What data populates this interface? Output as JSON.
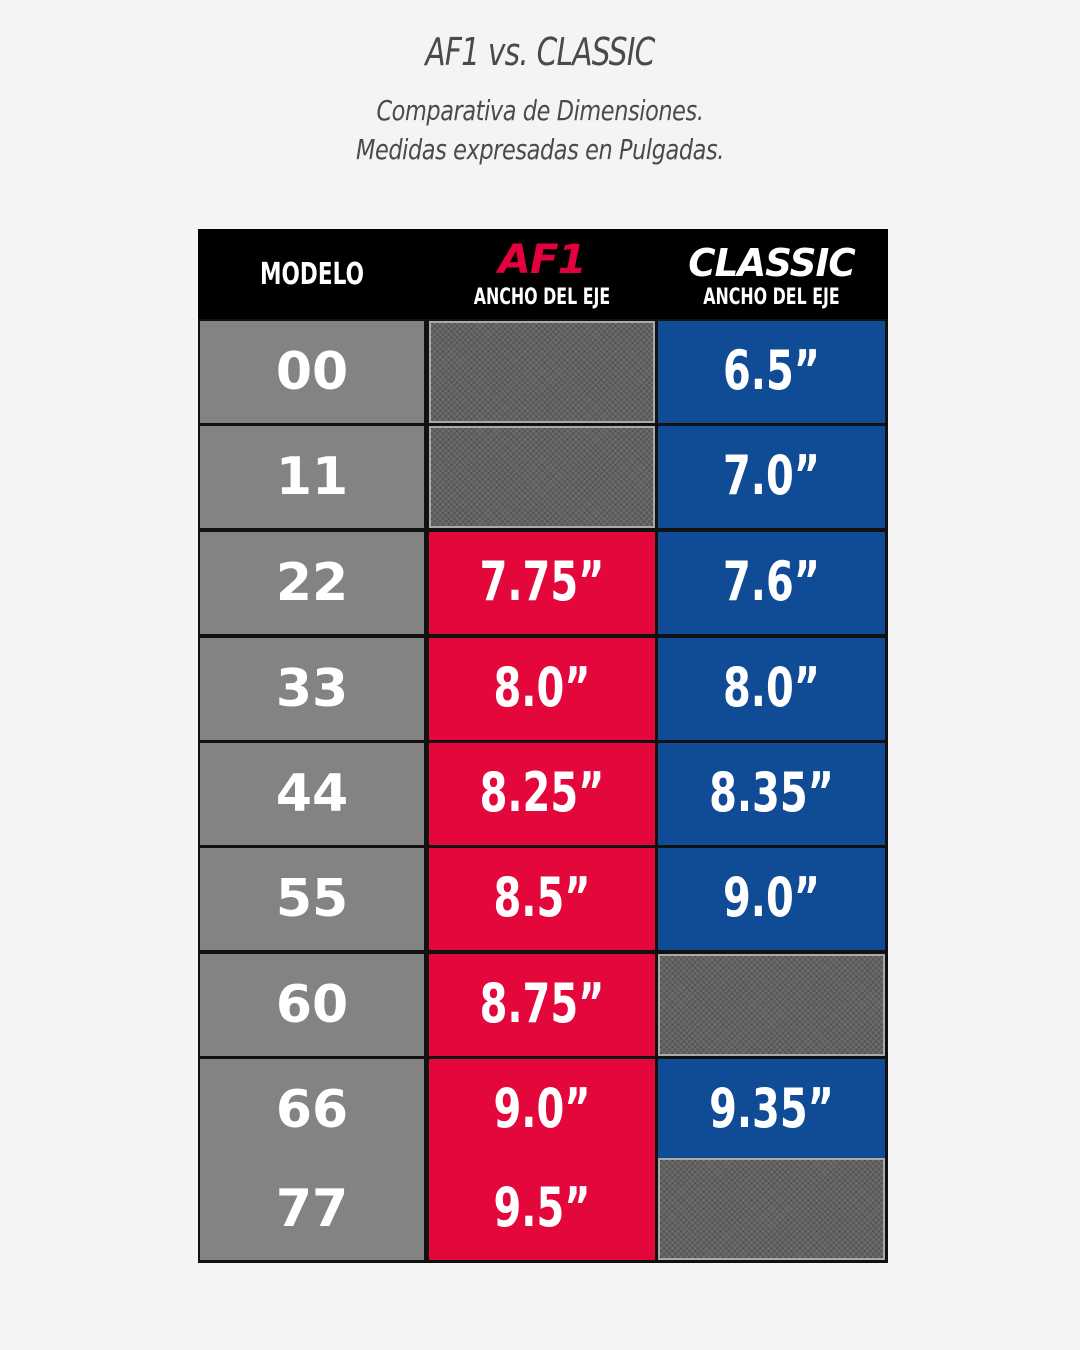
{
  "title": "AF1 vs. CLASSIC",
  "subtitle_line1": "Comparativa de Dimensiones.",
  "subtitle_line2": "Medidas expresadas en Pulgadas.",
  "table": {
    "headers": {
      "model": "MODELO",
      "af1_brand": "AF1",
      "af1_sub": "ANCHO DEL EJE",
      "classic_brand": "CLASSIC",
      "classic_sub": "ANCHO DEL EJE"
    },
    "colors": {
      "af1": "#e4073c",
      "classic": "#0f4c95",
      "model": "#838383",
      "header": "#000000",
      "empty": "#6b6b6b"
    },
    "rows": [
      {
        "model": "00",
        "af1": "",
        "classic": "6.5”"
      },
      {
        "model": "11",
        "af1": "",
        "classic": "7.0”"
      },
      {
        "model": "22",
        "af1": "7.75”",
        "classic": "7.6”"
      },
      {
        "model": "33",
        "af1": "8.0”",
        "classic": "8.0”"
      },
      {
        "model": "44",
        "af1": "8.25”",
        "classic": "8.35”"
      },
      {
        "model": "55",
        "af1": "8.5”",
        "classic": "9.0”"
      },
      {
        "model": "60",
        "af1": "8.75”",
        "classic": ""
      },
      {
        "model": "66",
        "af1": "9.0”",
        "classic": "9.35”"
      },
      {
        "model": "77",
        "af1": "9.5”",
        "classic": ""
      }
    ]
  }
}
